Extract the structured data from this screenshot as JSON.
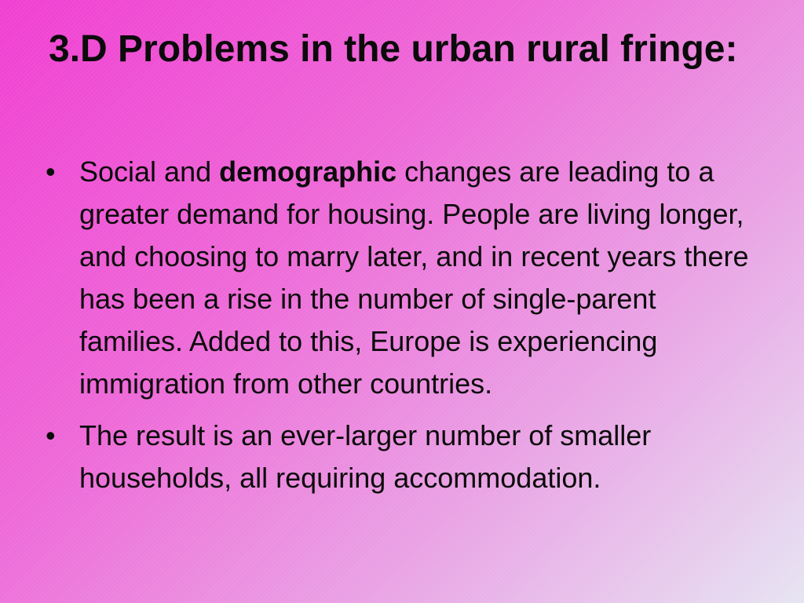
{
  "slide": {
    "title": "3.D Problems in the urban rural fringe:",
    "bullet_char": "•",
    "bullets": [
      {
        "before": "Social and ",
        "bold": "demographic",
        "after": " changes are leading to a greater demand for housing. People are living longer, and choosing to marry later, and in recent years there has been a rise in the number of single-parent families. Added to this, Europe is experiencing immigration from other countries."
      },
      {
        "text": "The result is an ever-larger number of smaller households, all requiring accommodation."
      }
    ]
  },
  "colors": {
    "background_start": "#f03fd2",
    "background_mid": "#ee6ad8",
    "background_end": "#e6e4f2",
    "text": "#0b0b0b"
  }
}
